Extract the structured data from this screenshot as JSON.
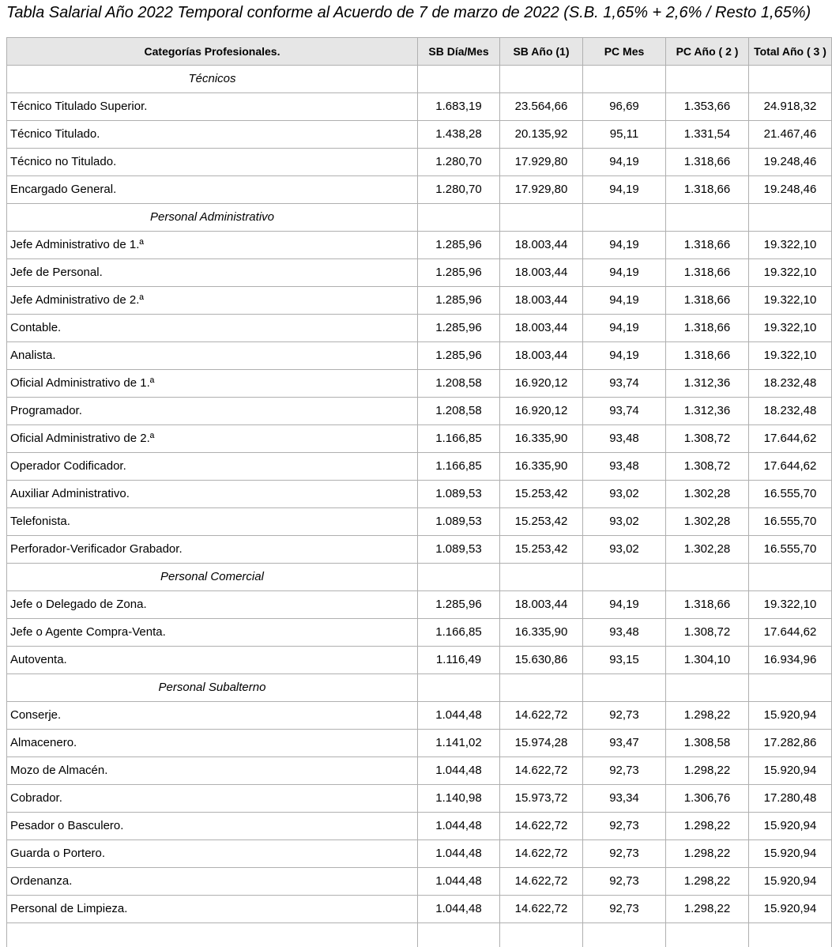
{
  "title": "Tabla Salarial Año 2022 Temporal conforme al Acuerdo de 7 de marzo de 2022 (S.B. 1,65% + 2,6% / Resto 1,65%)",
  "colors": {
    "header_background": "#e6e6e6",
    "border": "#b0b0b0",
    "text": "#000000"
  },
  "table": {
    "columns": [
      "Categorías Profesionales.",
      "SB Día/Mes",
      "SB Año (1)",
      "PC Mes",
      "PC Año ( 2 )",
      "Total Año ( 3 )"
    ],
    "rows": [
      {
        "type": "section",
        "label": "Técnicos",
        "values": [
          "",
          "",
          "",
          "",
          ""
        ]
      },
      {
        "type": "data",
        "label": "Técnico Titulado Superior.",
        "values": [
          "1.683,19",
          "23.564,66",
          "96,69",
          "1.353,66",
          "24.918,32"
        ]
      },
      {
        "type": "data",
        "label": "Técnico Titulado.",
        "values": [
          "1.438,28",
          "20.135,92",
          "95,11",
          "1.331,54",
          "21.467,46"
        ]
      },
      {
        "type": "data",
        "label": "Técnico no Titulado.",
        "values": [
          "1.280,70",
          "17.929,80",
          "94,19",
          "1.318,66",
          "19.248,46"
        ]
      },
      {
        "type": "data",
        "label": "Encargado General.",
        "values": [
          "1.280,70",
          "17.929,80",
          "94,19",
          "1.318,66",
          "19.248,46"
        ]
      },
      {
        "type": "section",
        "label": "Personal Administrativo",
        "values": [
          "",
          "",
          "",
          "",
          ""
        ]
      },
      {
        "type": "data",
        "label": "Jefe Administrativo de 1.ª",
        "values": [
          "1.285,96",
          "18.003,44",
          "94,19",
          "1.318,66",
          "19.322,10"
        ]
      },
      {
        "type": "data",
        "label": "Jefe de Personal.",
        "values": [
          "1.285,96",
          "18.003,44",
          "94,19",
          "1.318,66",
          "19.322,10"
        ]
      },
      {
        "type": "data",
        "label": "Jefe Administrativo de 2.ª",
        "values": [
          "1.285,96",
          "18.003,44",
          "94,19",
          "1.318,66",
          "19.322,10"
        ]
      },
      {
        "type": "data",
        "label": "Contable.",
        "values": [
          "1.285,96",
          "18.003,44",
          "94,19",
          "1.318,66",
          "19.322,10"
        ]
      },
      {
        "type": "data",
        "label": "Analista.",
        "values": [
          "1.285,96",
          "18.003,44",
          "94,19",
          "1.318,66",
          "19.322,10"
        ]
      },
      {
        "type": "data",
        "label": "Oficial Administrativo de 1.ª",
        "values": [
          "1.208,58",
          "16.920,12",
          "93,74",
          "1.312,36",
          "18.232,48"
        ]
      },
      {
        "type": "data",
        "label": "Programador.",
        "values": [
          "1.208,58",
          "16.920,12",
          "93,74",
          "1.312,36",
          "18.232,48"
        ]
      },
      {
        "type": "data",
        "label": "Oficial Administrativo de 2.ª",
        "values": [
          "1.166,85",
          "16.335,90",
          "93,48",
          "1.308,72",
          "17.644,62"
        ]
      },
      {
        "type": "data",
        "label": "Operador Codificador.",
        "values": [
          "1.166,85",
          "16.335,90",
          "93,48",
          "1.308,72",
          "17.644,62"
        ]
      },
      {
        "type": "data",
        "label": "Auxiliar Administrativo.",
        "values": [
          "1.089,53",
          "15.253,42",
          "93,02",
          "1.302,28",
          "16.555,70"
        ]
      },
      {
        "type": "data",
        "label": "Telefonista.",
        "values": [
          "1.089,53",
          "15.253,42",
          "93,02",
          "1.302,28",
          "16.555,70"
        ]
      },
      {
        "type": "data",
        "label": "Perforador-Verificador Grabador.",
        "values": [
          "1.089,53",
          "15.253,42",
          "93,02",
          "1.302,28",
          "16.555,70"
        ]
      },
      {
        "type": "section",
        "label": "Personal Comercial",
        "values": [
          "",
          "",
          "",
          "",
          ""
        ]
      },
      {
        "type": "data",
        "label": "Jefe o Delegado de Zona.",
        "values": [
          "1.285,96",
          "18.003,44",
          "94,19",
          "1.318,66",
          "19.322,10"
        ]
      },
      {
        "type": "data",
        "label": "Jefe o Agente Compra-Venta.",
        "values": [
          "1.166,85",
          "16.335,90",
          "93,48",
          "1.308,72",
          "17.644,62"
        ]
      },
      {
        "type": "data",
        "label": "Autoventa.",
        "values": [
          "1.116,49",
          "15.630,86",
          "93,15",
          "1.304,10",
          "16.934,96"
        ]
      },
      {
        "type": "section",
        "label": "Personal Subalterno",
        "values": [
          "",
          "",
          "",
          "",
          ""
        ]
      },
      {
        "type": "data",
        "label": "Conserje.",
        "values": [
          "1.044,48",
          "14.622,72",
          "92,73",
          "1.298,22",
          "15.920,94"
        ]
      },
      {
        "type": "data",
        "label": "Almacenero.",
        "values": [
          "1.141,02",
          "15.974,28",
          "93,47",
          "1.308,58",
          "17.282,86"
        ]
      },
      {
        "type": "data",
        "label": "Mozo de Almacén.",
        "values": [
          "1.044,48",
          "14.622,72",
          "92,73",
          "1.298,22",
          "15.920,94"
        ]
      },
      {
        "type": "data",
        "label": "Cobrador.",
        "values": [
          "1.140,98",
          "15.973,72",
          "93,34",
          "1.306,76",
          "17.280,48"
        ]
      },
      {
        "type": "data",
        "label": "Pesador o Basculero.",
        "values": [
          "1.044,48",
          "14.622,72",
          "92,73",
          "1.298,22",
          "15.920,94"
        ]
      },
      {
        "type": "data",
        "label": "Guarda o Portero.",
        "values": [
          "1.044,48",
          "14.622,72",
          "92,73",
          "1.298,22",
          "15.920,94"
        ]
      },
      {
        "type": "data",
        "label": "Ordenanza.",
        "values": [
          "1.044,48",
          "14.622,72",
          "92,73",
          "1.298,22",
          "15.920,94"
        ]
      },
      {
        "type": "data",
        "label": "Personal de Limpieza.",
        "values": [
          "1.044,48",
          "14.622,72",
          "92,73",
          "1.298,22",
          "15.920,94"
        ]
      }
    ]
  }
}
